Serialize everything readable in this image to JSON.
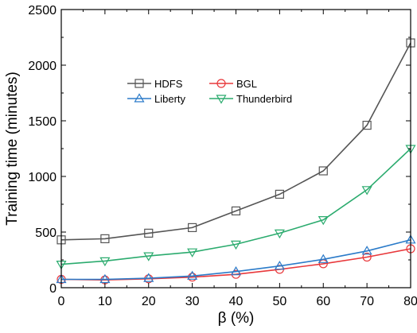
{
  "chart_data": {
    "type": "line",
    "xlabel": "β (%)",
    "ylabel": "Training time (minutes)",
    "xlim": [
      0,
      80
    ],
    "ylim": [
      0,
      2500
    ],
    "x_ticks": [
      0,
      10,
      20,
      30,
      40,
      50,
      60,
      70,
      80
    ],
    "y_ticks": [
      0,
      500,
      1000,
      1500,
      2000,
      2500
    ],
    "x_tick_labels": [
      "0",
      "10",
      "20",
      "30",
      "40",
      "50",
      "60",
      "70",
      "80"
    ],
    "y_tick_labels": [
      "0",
      "500",
      "1000",
      "1500",
      "2000",
      "2500"
    ],
    "grid": false,
    "legend_position": "upper-left-center",
    "x": [
      0,
      10,
      20,
      30,
      40,
      50,
      60,
      70,
      80
    ],
    "series": [
      {
        "name": "HDFS",
        "marker": "square",
        "color": "#555555",
        "values": [
          430,
          440,
          490,
          540,
          690,
          840,
          1050,
          1460,
          2200
        ]
      },
      {
        "name": "BGL",
        "marker": "circle",
        "color": "#e8383b",
        "values": [
          75,
          70,
          80,
          95,
          120,
          165,
          215,
          275,
          350
        ]
      },
      {
        "name": "Liberty",
        "marker": "triangle-up",
        "color": "#2b7bc9",
        "values": [
          75,
          75,
          85,
          105,
          145,
          195,
          255,
          330,
          430
        ]
      },
      {
        "name": "Thunderbird",
        "marker": "triangle-down",
        "color": "#2bab6e",
        "values": [
          210,
          240,
          285,
          320,
          390,
          490,
          610,
          880,
          1250
        ]
      }
    ]
  }
}
